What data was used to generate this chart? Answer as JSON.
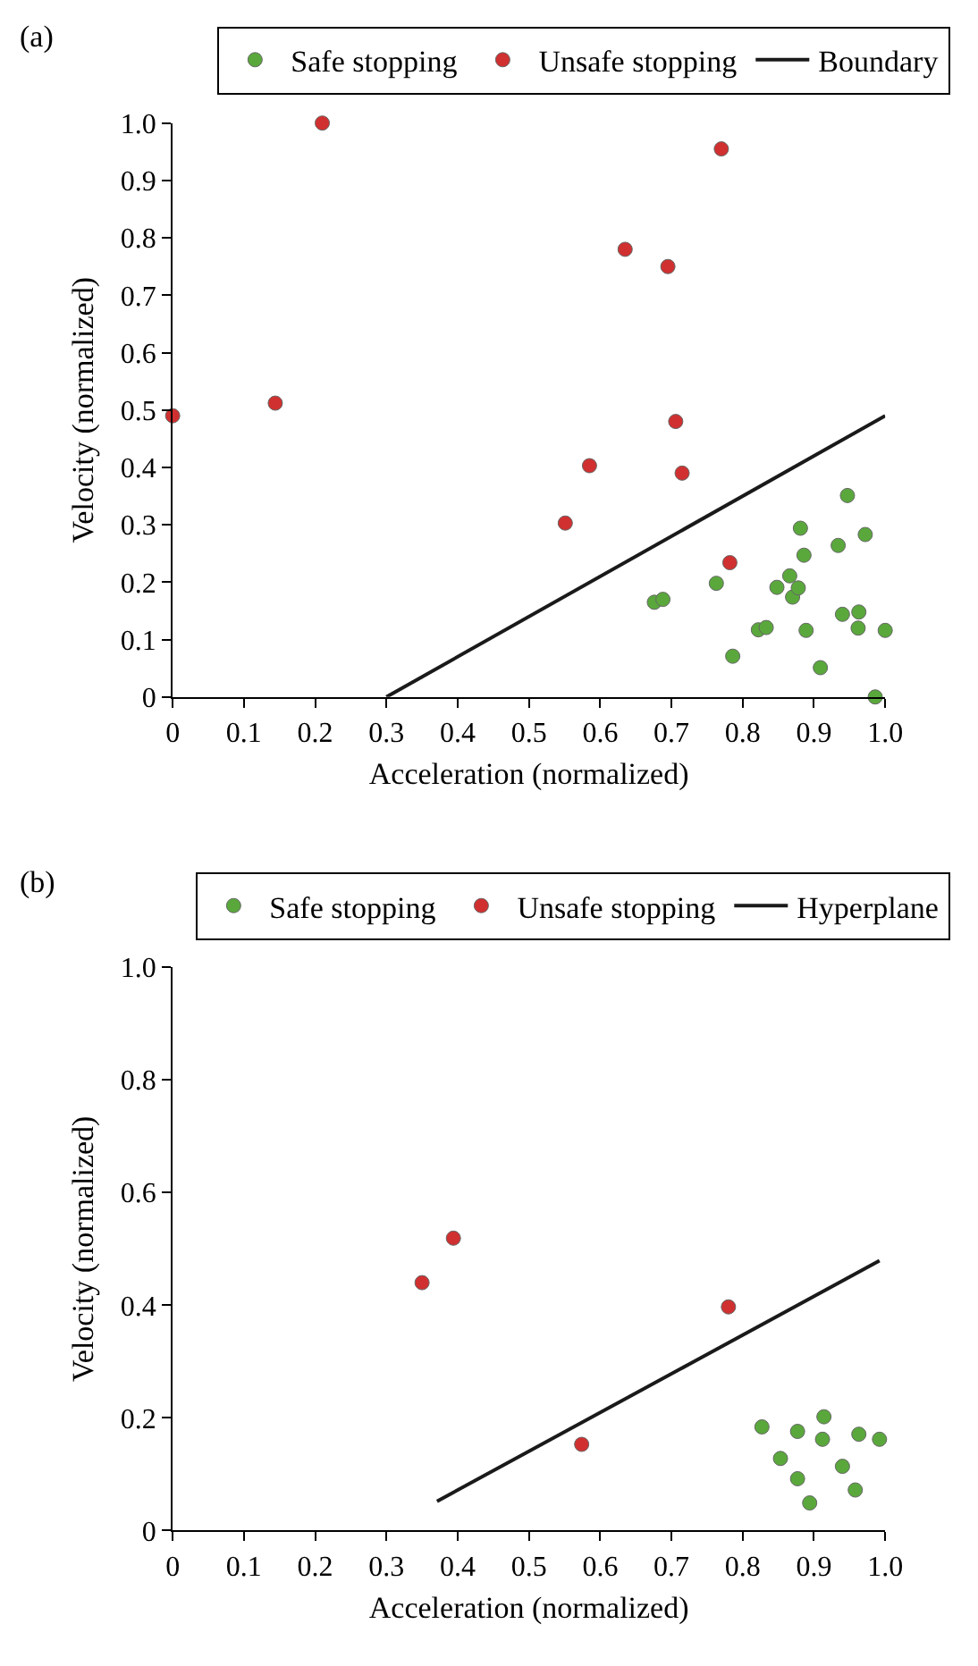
{
  "chart_data": [
    {
      "type": "scatter",
      "title": "(a)",
      "xlabel": "Acceleration (normalized)",
      "ylabel": "Velocity (normalized)",
      "xlim": [
        0,
        1
      ],
      "ylim": [
        0,
        1
      ],
      "xticks": [
        0,
        0.1,
        0.2,
        0.3,
        0.4,
        0.5,
        0.6,
        0.7,
        0.8,
        0.9,
        {
          "value": 1,
          "label": "1.0"
        }
      ],
      "yticks": [
        0,
        0.1,
        0.2,
        0.3,
        0.4,
        0.5,
        0.6,
        0.7,
        0.8,
        0.9,
        {
          "value": 1,
          "label": "1.0"
        }
      ],
      "legend": "top",
      "marker": "circle",
      "series": [
        {
          "name": "Safe stopping",
          "color": "#5aa83c",
          "x": [
            0.676,
            0.688,
            0.763,
            0.786,
            0.822,
            0.833,
            0.848,
            0.866,
            0.87,
            0.878,
            0.881,
            0.886,
            0.889,
            0.909,
            0.934,
            0.94,
            0.947,
            0.962,
            0.963,
            0.972,
            0.986,
            1.0
          ],
          "values": [
            0.165,
            0.17,
            0.198,
            0.071,
            0.117,
            0.121,
            0.191,
            0.211,
            0.174,
            0.19,
            0.294,
            0.247,
            0.116,
            0.051,
            0.264,
            0.144,
            0.351,
            0.12,
            0.148,
            0.283,
            0,
            0.116
          ]
        },
        {
          "name": "Unsafe stopping",
          "color": "#d03030",
          "x": [
            0,
            0.144,
            0.21,
            0.551,
            0.585,
            0.635,
            0.695,
            0.706,
            0.715,
            0.77,
            0.782
          ],
          "values": [
            0.49,
            0.512,
            1.0,
            0.303,
            0.403,
            0.78,
            0.75,
            0.48,
            0.39,
            0.955,
            0.234
          ]
        },
        {
          "name": "Boundary",
          "type": "line",
          "marker": "none",
          "color": "#1a1a1a",
          "line_style": "solid",
          "x": [
            0.3,
            1.0
          ],
          "values": [
            0,
            0.49
          ]
        }
      ]
    },
    {
      "type": "scatter",
      "title": "(b)",
      "xlabel": "Acceleration (normalized)",
      "ylabel": "Velocity (normalized)",
      "xlim": [
        0,
        1
      ],
      "ylim": [
        0,
        1
      ],
      "xticks": [
        0,
        0.1,
        0.2,
        0.3,
        0.4,
        0.5,
        0.6,
        0.7,
        0.8,
        0.9,
        {
          "value": 1,
          "label": "1.0"
        }
      ],
      "yticks": [
        0,
        0.2,
        0.4,
        0.6,
        0.8,
        {
          "value": 1,
          "label": "1.0"
        }
      ],
      "legend": "top",
      "marker": "circle",
      "series": [
        {
          "name": "Safe stopping",
          "color": "#5aa83c",
          "x": [
            0.827,
            0.853,
            0.877,
            0.877,
            0.894,
            0.914,
            0.912,
            0.94,
            0.958,
            0.963,
            0.992
          ],
          "values": [
            0.184,
            0.128,
            0.176,
            0.092,
            0.049,
            0.202,
            0.162,
            0.114,
            0.072,
            0.171,
            0.162
          ]
        },
        {
          "name": "Unsafe stopping",
          "color": "#d03030",
          "x": [
            0.35,
            0.394,
            0.574,
            0.78
          ],
          "values": [
            0.44,
            0.519,
            0.153,
            0.397
          ]
        },
        {
          "name": "Hyperplane",
          "type": "line",
          "marker": "none",
          "color": "#1a1a1a",
          "line_style": "solid",
          "x": [
            0.371,
            0.992
          ],
          "values": [
            0.052,
            0.479
          ]
        }
      ]
    }
  ]
}
